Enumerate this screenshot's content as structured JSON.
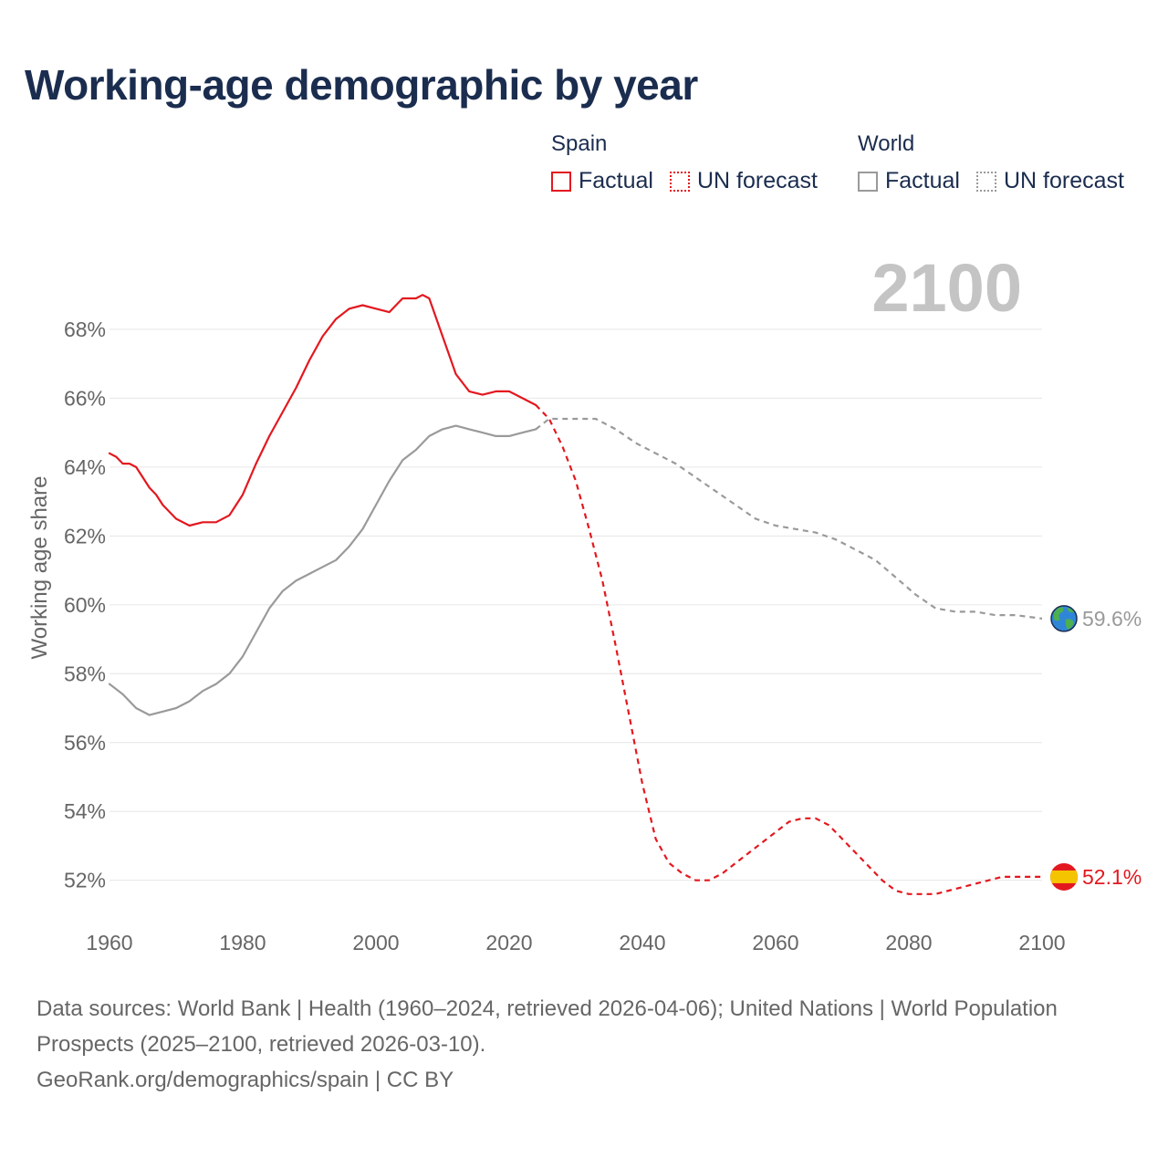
{
  "title": "Working-age demographic by year",
  "legend": {
    "spain": {
      "label": "Spain",
      "factual": "Factual",
      "forecast": "UN forecast"
    },
    "world": {
      "label": "World",
      "factual": "Factual",
      "forecast": "UN forecast"
    }
  },
  "footer": {
    "sources": "Data sources: World Bank | Health (1960–2024, retrieved 2026-04-06); United Nations | World Population Prospects (2025–2100, retrieved 2026-03-10).",
    "credit": "GeoRank.org/demographics/spain | CC BY"
  },
  "colors": {
    "spain": "#e3181f",
    "world": "#9a9a9a",
    "grid": "#e6e6e6",
    "year": "#c4c4c4",
    "text": "#1b2d4f"
  },
  "chart_data": {
    "type": "line",
    "ylabel": "Working age share",
    "xlim": [
      1960,
      2100
    ],
    "ylim": [
      50.8,
      69.8
    ],
    "x_ticks": [
      1960,
      1980,
      2000,
      2020,
      2040,
      2060,
      2080,
      2100
    ],
    "x_tick_labels": [
      "1960",
      "1980",
      "2000",
      "2020",
      "2040",
      "2060",
      "2080",
      "2100"
    ],
    "y_ticks": [
      52,
      54,
      56,
      58,
      60,
      62,
      64,
      66,
      68
    ],
    "y_tick_labels": [
      "52%",
      "54%",
      "56%",
      "58%",
      "60%",
      "62%",
      "64%",
      "66%",
      "68%"
    ],
    "current_year": "2100",
    "series": [
      {
        "name": "Spain Factual",
        "key": "spain",
        "style": "solid",
        "x": [
          1960,
          1961,
          1962,
          1963,
          1964,
          1966,
          1967,
          1968,
          1970,
          1972,
          1974,
          1976,
          1978,
          1980,
          1982,
          1984,
          1986,
          1988,
          1990,
          1992,
          1994,
          1996,
          1998,
          2000,
          2002,
          2004,
          2006,
          2007,
          2008,
          2010,
          2012,
          2014,
          2016,
          2018,
          2020,
          2022,
          2024
        ],
        "values": [
          64.4,
          64.3,
          64.1,
          64.1,
          64.0,
          63.4,
          63.2,
          62.9,
          62.5,
          62.3,
          62.4,
          62.4,
          62.6,
          63.2,
          64.1,
          64.9,
          65.6,
          66.3,
          67.1,
          67.8,
          68.3,
          68.6,
          68.7,
          68.6,
          68.5,
          68.9,
          68.9,
          69.0,
          68.9,
          67.8,
          66.7,
          66.2,
          66.1,
          66.2,
          66.2,
          66.0,
          65.8
        ]
      },
      {
        "name": "Spain UN forecast",
        "key": "spain",
        "style": "dashed",
        "x": [
          2024,
          2026,
          2028,
          2030,
          2032,
          2034,
          2036,
          2038,
          2040,
          2042,
          2044,
          2046,
          2048,
          2050,
          2052,
          2054,
          2056,
          2058,
          2060,
          2062,
          2064,
          2066,
          2068,
          2070,
          2072,
          2074,
          2076,
          2078,
          2080,
          2082,
          2084,
          2086,
          2088,
          2090,
          2092,
          2094,
          2096,
          2098,
          2100
        ],
        "values": [
          65.8,
          65.4,
          64.6,
          63.6,
          62.2,
          60.7,
          58.8,
          56.8,
          54.8,
          53.2,
          52.5,
          52.2,
          52.0,
          52.0,
          52.2,
          52.5,
          52.8,
          53.1,
          53.4,
          53.7,
          53.8,
          53.8,
          53.6,
          53.2,
          52.8,
          52.4,
          52.0,
          51.7,
          51.6,
          51.6,
          51.6,
          51.7,
          51.8,
          51.9,
          52.0,
          52.1,
          52.1,
          52.1,
          52.1
        ]
      },
      {
        "name": "World Factual",
        "key": "world",
        "style": "solid",
        "x": [
          1960,
          1962,
          1964,
          1966,
          1968,
          1970,
          1972,
          1974,
          1976,
          1978,
          1980,
          1982,
          1984,
          1986,
          1988,
          1990,
          1992,
          1994,
          1996,
          1998,
          2000,
          2002,
          2004,
          2006,
          2008,
          2010,
          2012,
          2014,
          2016,
          2018,
          2020,
          2022,
          2024
        ],
        "values": [
          57.7,
          57.4,
          57.0,
          56.8,
          56.9,
          57.0,
          57.2,
          57.5,
          57.7,
          58.0,
          58.5,
          59.2,
          59.9,
          60.4,
          60.7,
          60.9,
          61.1,
          61.3,
          61.7,
          62.2,
          62.9,
          63.6,
          64.2,
          64.5,
          64.9,
          65.1,
          65.2,
          65.1,
          65.0,
          64.9,
          64.9,
          65.0,
          65.1
        ]
      },
      {
        "name": "World UN forecast",
        "key": "world",
        "style": "dashed",
        "x": [
          2024,
          2026,
          2030,
          2033,
          2036,
          2039,
          2042,
          2045,
          2048,
          2051,
          2054,
          2057,
          2060,
          2063,
          2066,
          2069,
          2072,
          2075,
          2078,
          2081,
          2084,
          2087,
          2090,
          2093,
          2096,
          2100
        ],
        "values": [
          65.1,
          65.4,
          65.4,
          65.4,
          65.1,
          64.7,
          64.4,
          64.1,
          63.7,
          63.3,
          62.9,
          62.5,
          62.3,
          62.2,
          62.1,
          61.9,
          61.6,
          61.3,
          60.8,
          60.3,
          59.9,
          59.8,
          59.8,
          59.7,
          59.7,
          59.6
        ]
      }
    ],
    "end_labels": [
      {
        "key": "world",
        "value": 59.6,
        "text": "59.6%",
        "icon": "globe-icon"
      },
      {
        "key": "spain",
        "value": 52.1,
        "text": "52.1%",
        "icon": "spain-flag-icon"
      }
    ]
  }
}
